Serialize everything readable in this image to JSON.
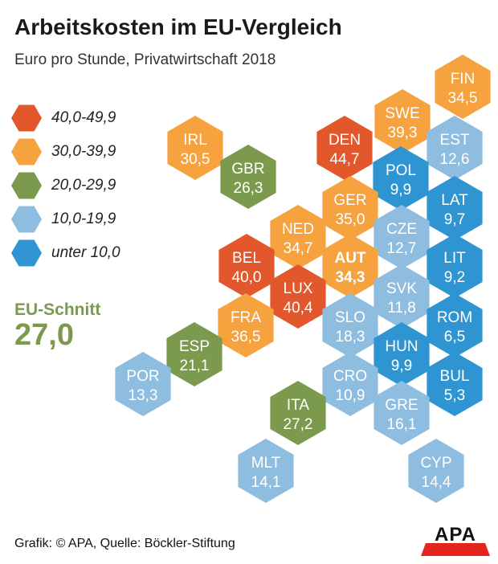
{
  "title": "Arbeitskosten im EU-Vergleich",
  "subtitle": "Euro pro Stunde, Privatwirtschaft 2018",
  "legend": [
    {
      "label": "40,0-49,9",
      "color": "#e2582c"
    },
    {
      "label": "30,0-39,9",
      "color": "#f6a23f"
    },
    {
      "label": "20,0-29,9",
      "color": "#7c9a4e"
    },
    {
      "label": "10,0-19,9",
      "color": "#8fbde0"
    },
    {
      "label": "unter 10,0",
      "color": "#2f95d2"
    }
  ],
  "average": {
    "label": "EU-Schnitt",
    "value": "27,0"
  },
  "chart_data": {
    "type": "heatmap",
    "unit": "Euro pro Stunde",
    "cells": [
      {
        "code": "FIN",
        "value": 34.5,
        "label": "34,5",
        "color": "#f6a23f"
      },
      {
        "code": "SWE",
        "value": 39.3,
        "label": "39,3",
        "color": "#f6a23f"
      },
      {
        "code": "EST",
        "value": 12.6,
        "label": "12,6",
        "color": "#8fbde0"
      },
      {
        "code": "IRL",
        "value": 30.5,
        "label": "30,5",
        "color": "#f6a23f"
      },
      {
        "code": "DEN",
        "value": 44.7,
        "label": "44,7",
        "color": "#e2582c"
      },
      {
        "code": "GBR",
        "value": 26.3,
        "label": "26,3",
        "color": "#7c9a4e"
      },
      {
        "code": "POL",
        "value": 9.9,
        "label": "9,9",
        "color": "#2f95d2"
      },
      {
        "code": "LAT",
        "value": 9.7,
        "label": "9,7",
        "color": "#2f95d2"
      },
      {
        "code": "GER",
        "value": 35.0,
        "label": "35,0",
        "color": "#f6a23f"
      },
      {
        "code": "NED",
        "value": 34.7,
        "label": "34,7",
        "color": "#f6a23f"
      },
      {
        "code": "CZE",
        "value": 12.7,
        "label": "12,7",
        "color": "#8fbde0"
      },
      {
        "code": "BEL",
        "value": 40.0,
        "label": "40,0",
        "color": "#e2582c"
      },
      {
        "code": "AUT",
        "value": 34.3,
        "label": "34,3",
        "color": "#f6a23f",
        "highlight": true
      },
      {
        "code": "LIT",
        "value": 9.2,
        "label": "9,2",
        "color": "#2f95d2"
      },
      {
        "code": "LUX",
        "value": 40.4,
        "label": "40,4",
        "color": "#e2582c"
      },
      {
        "code": "SVK",
        "value": 11.8,
        "label": "11,8",
        "color": "#8fbde0"
      },
      {
        "code": "FRA",
        "value": 36.5,
        "label": "36,5",
        "color": "#f6a23f"
      },
      {
        "code": "SLO",
        "value": 18.3,
        "label": "18,3",
        "color": "#8fbde0"
      },
      {
        "code": "ROM",
        "value": 6.5,
        "label": "6,5",
        "color": "#2f95d2"
      },
      {
        "code": "ESP",
        "value": 21.1,
        "label": "21,1",
        "color": "#7c9a4e"
      },
      {
        "code": "HUN",
        "value": 9.9,
        "label": "9,9",
        "color": "#2f95d2"
      },
      {
        "code": "POR",
        "value": 13.3,
        "label": "13,3",
        "color": "#8fbde0"
      },
      {
        "code": "CRO",
        "value": 10.9,
        "label": "10,9",
        "color": "#8fbde0"
      },
      {
        "code": "BUL",
        "value": 5.3,
        "label": "5,3",
        "color": "#2f95d2"
      },
      {
        "code": "ITA",
        "value": 27.2,
        "label": "27,2",
        "color": "#7c9a4e"
      },
      {
        "code": "GRE",
        "value": 16.1,
        "label": "16,1",
        "color": "#8fbde0"
      },
      {
        "code": "MLT",
        "value": 14.1,
        "label": "14,1",
        "color": "#8fbde0"
      },
      {
        "code": "CYP",
        "value": 14.4,
        "label": "14,4",
        "color": "#8fbde0"
      }
    ]
  },
  "footer": {
    "source": "Grafik: © APA, Quelle: Böckler-Stiftung",
    "logo": "APA"
  }
}
